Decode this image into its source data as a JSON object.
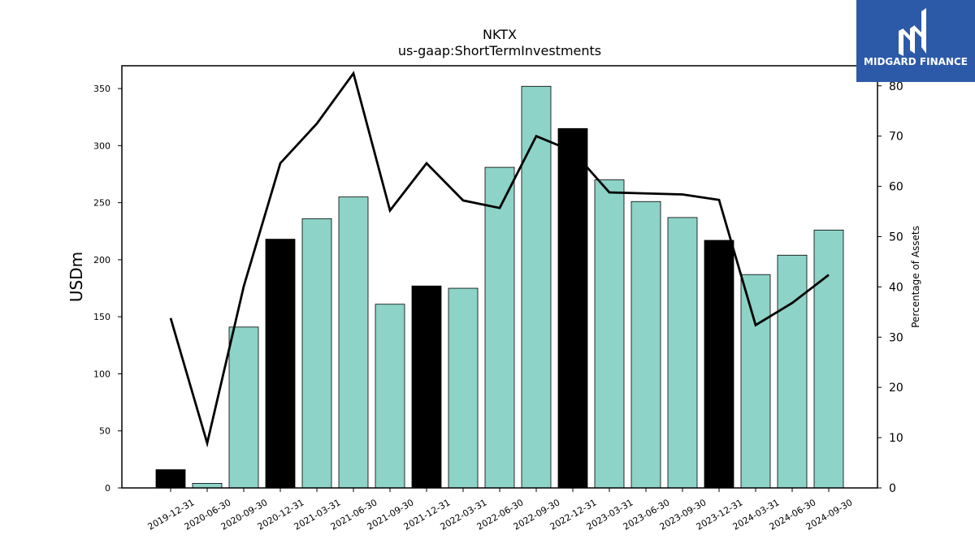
{
  "logo": {
    "text": "MIDGARD FINANCE",
    "bg_color": "#2d5aa8"
  },
  "chart_data": {
    "type": "bar",
    "title": "NKTX",
    "subtitle": "us-gaap:ShortTermInvestments",
    "ylabel": "USDm",
    "y2label": "Percentage of Assets",
    "categories": [
      "2019-12-31",
      "2020-06-30",
      "2020-09-30",
      "2020-12-31",
      "2021-03-31",
      "2021-06-30",
      "2021-09-30",
      "2021-12-31",
      "2022-03-31",
      "2022-06-30",
      "2022-09-30",
      "2022-12-31",
      "2023-03-31",
      "2023-06-30",
      "2023-09-30",
      "2023-12-31",
      "2024-03-31",
      "2024-06-30",
      "2024-09-30"
    ],
    "series": [
      {
        "type": "bar",
        "axis": "left",
        "values": [
          16,
          4,
          141,
          218,
          236,
          255,
          161,
          177,
          175,
          281,
          352,
          315,
          270,
          251,
          237,
          217,
          187,
          204,
          226
        ],
        "colors": [
          "#000000",
          "#8dd3c7",
          "#8dd3c7",
          "#000000",
          "#8dd3c7",
          "#8dd3c7",
          "#8dd3c7",
          "#000000",
          "#8dd3c7",
          "#8dd3c7",
          "#8dd3c7",
          "#000000",
          "#8dd3c7",
          "#8dd3c7",
          "#8dd3c7",
          "#000000",
          "#8dd3c7",
          "#8dd3c7",
          "#8dd3c7"
        ]
      },
      {
        "type": "line",
        "axis": "right",
        "color": "#000000",
        "values": [
          33.8,
          8.9,
          40.1,
          64.6,
          72.5,
          82.5,
          55.2,
          64.6,
          57.2,
          55.7,
          70.0,
          67.0,
          58.8,
          58.6,
          58.4,
          57.3,
          32.4,
          36.8,
          42.4
        ]
      }
    ],
    "ylim": [
      0,
      370
    ],
    "y2lim": [
      0,
      84
    ],
    "yticks": [
      0,
      50,
      100,
      150,
      200,
      250,
      300,
      350
    ],
    "y2ticks": [
      0,
      10,
      20,
      30,
      40,
      50,
      60,
      70,
      80
    ],
    "grid": false,
    "bar_palette": {
      "year_end": "#000000",
      "quarter": "#8dd3c7"
    }
  }
}
